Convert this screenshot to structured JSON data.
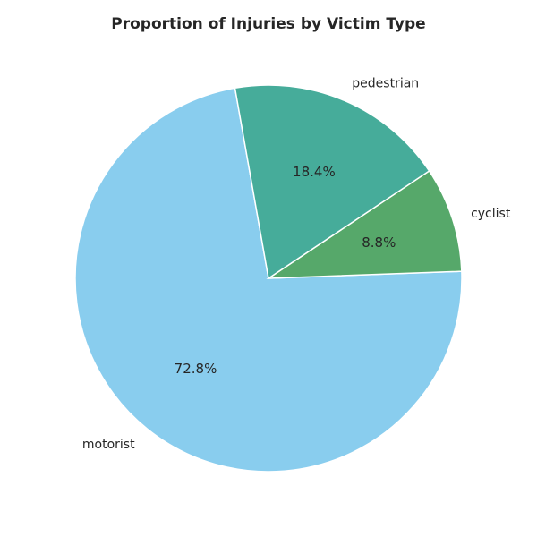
{
  "chart_data": {
    "type": "pie",
    "title": "Proportion of Injuries by Victim Type",
    "slices": [
      {
        "label": "motorist",
        "percent": 72.8,
        "color": "#89CDEE"
      },
      {
        "label": "cyclist",
        "percent": 8.8,
        "color": "#56A86A"
      },
      {
        "label": "pedestrian",
        "percent": 18.4,
        "color": "#46AC9A"
      }
    ],
    "start_angle_deg": 100,
    "direction": "counterclockwise",
    "percent_format": "1 decimal place",
    "legend": "none"
  }
}
